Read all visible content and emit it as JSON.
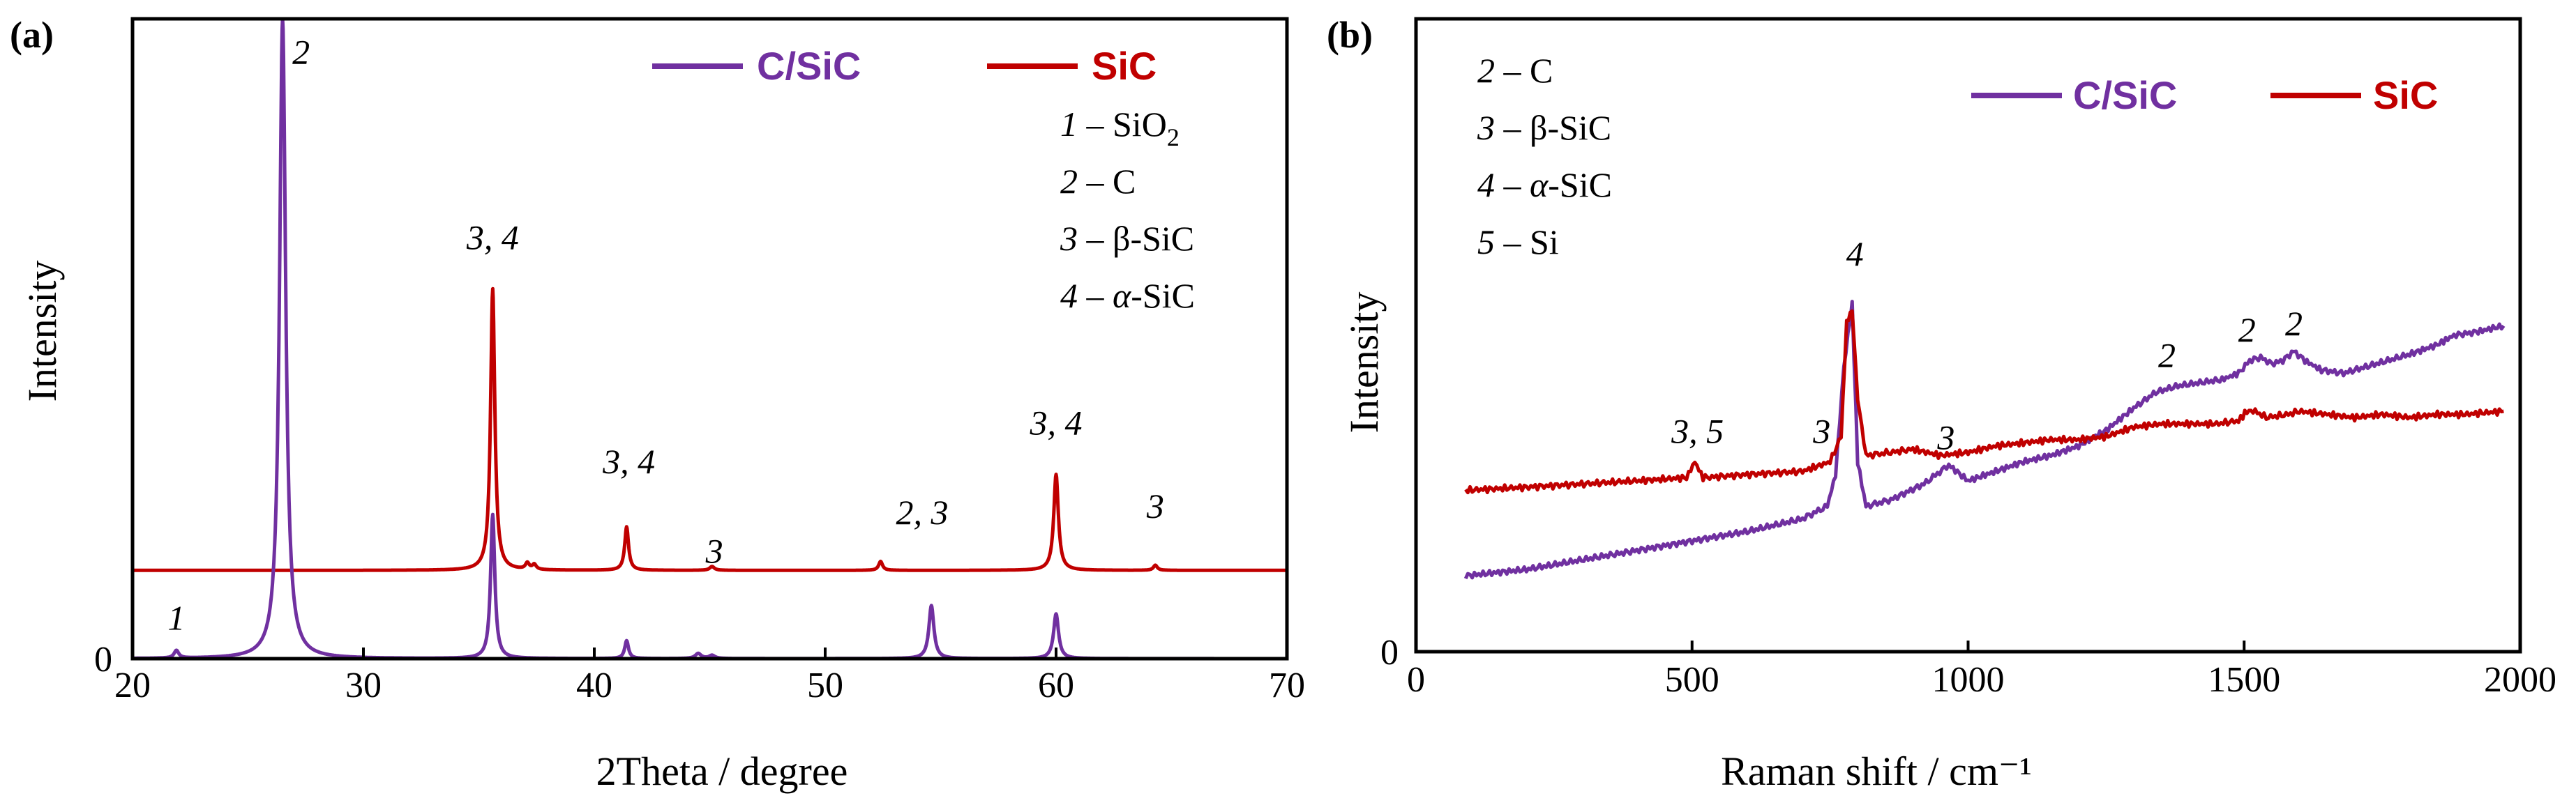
{
  "colors": {
    "c_sic": "#7030A0",
    "sic": "#C00000",
    "axis": "#000000"
  },
  "chart_data": [
    {
      "panel": "(a)",
      "type": "line",
      "title": "",
      "xlabel": "2Theta / degree",
      "ylabel": "Intensity",
      "xlim": [
        20,
        70
      ],
      "ylim": [
        0,
        100
      ],
      "xticks": [
        20,
        30,
        40,
        50,
        60,
        70
      ],
      "yticks": [
        0
      ],
      "grid": false,
      "legend": {
        "placement": "top",
        "entries": [
          "C/SiC",
          "SiC"
        ]
      },
      "phases": [
        {
          "num": "1",
          "sep": " – ",
          "text": "SiO",
          "sub": "2"
        },
        {
          "num": "2",
          "sep": " – ",
          "text": "C",
          "sub": ""
        },
        {
          "num": "3",
          "sep": " – ",
          "text": "β-SiC",
          "sub": ""
        },
        {
          "num": "4",
          "sep": " – ",
          "italic_text": "α",
          "text": "-SiC",
          "sub": ""
        }
      ],
      "annotations": [
        {
          "text": "1",
          "x": 21.9,
          "y": 4.5
        },
        {
          "text": "2",
          "x": 27.3,
          "y": 93
        },
        {
          "text": "3, 4",
          "x": 35.6,
          "y": 64
        },
        {
          "text": "3, 4",
          "x": 41.5,
          "y": 29
        },
        {
          "text": "3",
          "x": 45.2,
          "y": 15
        },
        {
          "text": "2, 3",
          "x": 54.2,
          "y": 21
        },
        {
          "text": "3, 4",
          "x": 60.0,
          "y": 35
        },
        {
          "text": "3",
          "x": 64.3,
          "y": 22
        }
      ],
      "series": [
        {
          "name": "C/SiC",
          "baseline": 0,
          "peaks": [
            {
              "x": 21.9,
              "h": 1.2,
              "w": 0.12
            },
            {
              "x": 26.5,
              "h": 100,
              "w": 0.16
            },
            {
              "x": 35.6,
              "h": 22.5,
              "w": 0.11
            },
            {
              "x": 41.4,
              "h": 2.8,
              "w": 0.1
            },
            {
              "x": 44.5,
              "h": 0.8,
              "w": 0.15
            },
            {
              "x": 45.1,
              "h": 0.5,
              "w": 0.15
            },
            {
              "x": 54.6,
              "h": 8.3,
              "w": 0.13
            },
            {
              "x": 60.0,
              "h": 7.0,
              "w": 0.13
            }
          ]
        },
        {
          "name": "SiC",
          "baseline": 13.8,
          "peaks": [
            {
              "x": 35.6,
              "h": 44,
              "w": 0.11
            },
            {
              "x": 37.1,
              "h": 1.0,
              "w": 0.1
            },
            {
              "x": 37.4,
              "h": 0.8,
              "w": 0.1
            },
            {
              "x": 41.4,
              "h": 6.8,
              "w": 0.1
            },
            {
              "x": 45.1,
              "h": 0.6,
              "w": 0.12
            },
            {
              "x": 52.4,
              "h": 1.4,
              "w": 0.1
            },
            {
              "x": 60.0,
              "h": 15.0,
              "w": 0.12
            },
            {
              "x": 64.3,
              "h": 0.8,
              "w": 0.1
            }
          ]
        }
      ]
    },
    {
      "panel": "(b)",
      "type": "line",
      "title": "",
      "xlabel": "Raman shift / cm⁻¹",
      "ylabel": "Intensity",
      "xlim": [
        0,
        2000
      ],
      "ylim": [
        0,
        100
      ],
      "xticks": [
        0,
        500,
        1000,
        1500,
        2000
      ],
      "yticks": [
        0
      ],
      "grid": false,
      "legend": {
        "placement": "top-right",
        "entries": [
          "C/SiC",
          "SiC"
        ]
      },
      "phases": [
        {
          "num": "2",
          "sep": " – ",
          "text": "C",
          "sub": ""
        },
        {
          "num": "3",
          "sep": " – ",
          "text": "β-SiC",
          "sub": ""
        },
        {
          "num": "4",
          "sep": " – ",
          "italic_text": "α",
          "text": "-SiC",
          "sub": ""
        },
        {
          "num": "5",
          "sep": " – ",
          "text": "Si",
          "sub": ""
        }
      ],
      "annotations": [
        {
          "text": "3, 5",
          "x": 510,
          "y": 33
        },
        {
          "text": "3",
          "x": 735,
          "y": 33
        },
        {
          "text": "4",
          "x": 795,
          "y": 61
        },
        {
          "text": "3",
          "x": 960,
          "y": 32
        },
        {
          "text": "2",
          "x": 1360,
          "y": 45
        },
        {
          "text": "2",
          "x": 1505,
          "y": 49
        },
        {
          "text": "2",
          "x": 1590,
          "y": 50
        }
      ],
      "series": [
        {
          "name": "C/SiC",
          "points": [
            [
              90,
              12
            ],
            [
              200,
              13
            ],
            [
              300,
              14.5
            ],
            [
              400,
              16
            ],
            [
              500,
              17.5
            ],
            [
              600,
              19
            ],
            [
              700,
              21
            ],
            [
              745,
              23
            ],
            [
              760,
              28
            ],
            [
              775,
              45
            ],
            [
              790,
              55
            ],
            [
              800,
              30
            ],
            [
              815,
              23
            ],
            [
              860,
              24
            ],
            [
              920,
              26.5
            ],
            [
              965,
              29.5
            ],
            [
              1000,
              27
            ],
            [
              1050,
              28.5
            ],
            [
              1100,
              30
            ],
            [
              1150,
              31
            ],
            [
              1200,
              32.5
            ],
            [
              1250,
              35
            ],
            [
              1300,
              38.5
            ],
            [
              1340,
              41
            ],
            [
              1380,
              42
            ],
            [
              1420,
              42.5
            ],
            [
              1460,
              43
            ],
            [
              1490,
              44
            ],
            [
              1510,
              46
            ],
            [
              1530,
              46.5
            ],
            [
              1550,
              45.5
            ],
            [
              1570,
              46
            ],
            [
              1590,
              47.5
            ],
            [
              1610,
              46
            ],
            [
              1640,
              44.5
            ],
            [
              1680,
              44
            ],
            [
              1720,
              45
            ],
            [
              1760,
              46
            ],
            [
              1800,
              47
            ],
            [
              1850,
              48.5
            ],
            [
              1880,
              50
            ],
            [
              1920,
              50.5
            ],
            [
              1970,
              51.5
            ]
          ]
        },
        {
          "name": "SiC",
          "points": [
            [
              90,
              25.5
            ],
            [
              200,
              26
            ],
            [
              300,
              26.5
            ],
            [
              400,
              27
            ],
            [
              490,
              27.5
            ],
            [
              505,
              30
            ],
            [
              520,
              27.5
            ],
            [
              600,
              28
            ],
            [
              700,
              28.5
            ],
            [
              750,
              30
            ],
            [
              770,
              34
            ],
            [
              780,
              52
            ],
            [
              790,
              54
            ],
            [
              800,
              40
            ],
            [
              815,
              31
            ],
            [
              860,
              31.5
            ],
            [
              900,
              32
            ],
            [
              950,
              31
            ],
            [
              1000,
              31.5
            ],
            [
              1050,
              32.5
            ],
            [
              1100,
              33
            ],
            [
              1150,
              33.5
            ],
            [
              1200,
              33.5
            ],
            [
              1250,
              34
            ],
            [
              1300,
              35.5
            ],
            [
              1350,
              36
            ],
            [
              1400,
              36
            ],
            [
              1450,
              36
            ],
            [
              1490,
              36.5
            ],
            [
              1505,
              38
            ],
            [
              1520,
              38
            ],
            [
              1540,
              37
            ],
            [
              1580,
              37.5
            ],
            [
              1600,
              38
            ],
            [
              1650,
              37.5
            ],
            [
              1700,
              37
            ],
            [
              1750,
              37.5
            ],
            [
              1800,
              37
            ],
            [
              1850,
              37.5
            ],
            [
              1900,
              37.5
            ],
            [
              1970,
              38
            ]
          ]
        }
      ]
    }
  ]
}
